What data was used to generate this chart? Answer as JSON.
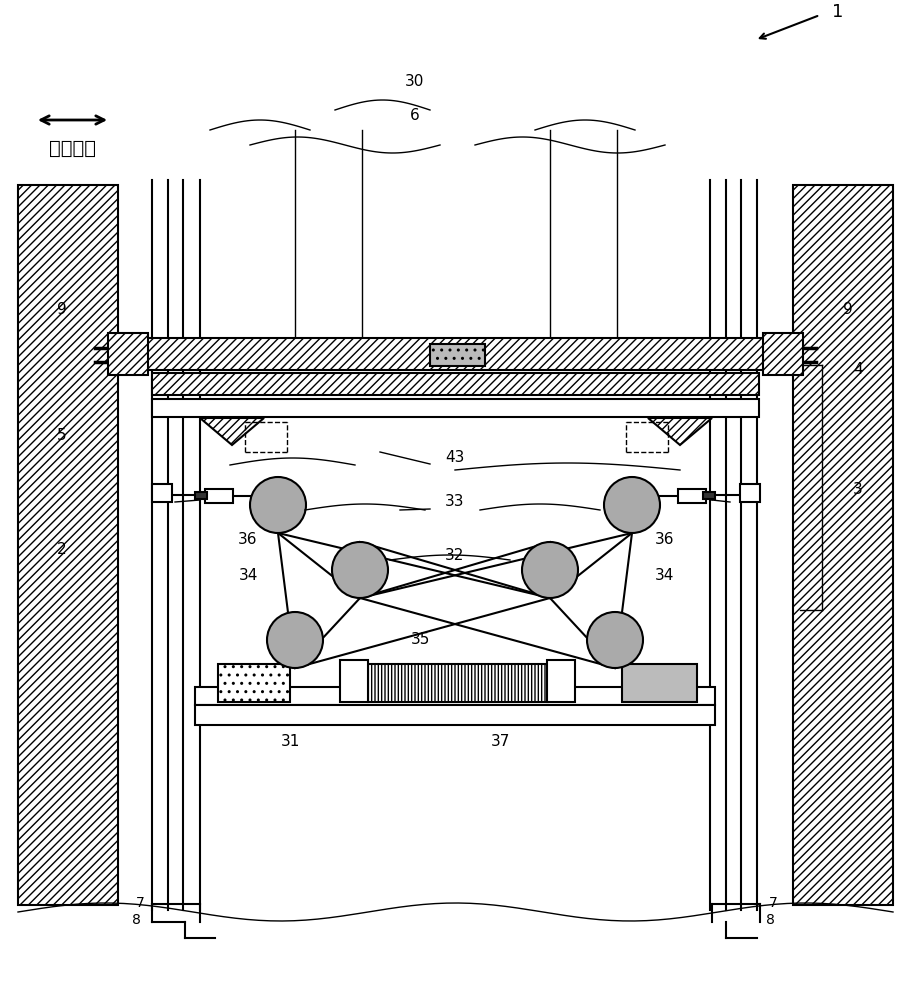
{
  "bg_color": "#ffffff",
  "gray_fill": "#aaaaaa",
  "light_gray": "#cccccc",
  "label_1": "1",
  "label_2": "2",
  "label_3": "3",
  "label_4": "4",
  "label_5": "5",
  "label_6": "6",
  "label_7": "7",
  "label_8": "8",
  "label_9": "9",
  "label_30": "30",
  "label_31": "31",
  "label_32": "32",
  "label_33": "33",
  "label_34": "34",
  "label_35": "35",
  "label_36": "36",
  "label_37": "37",
  "label_43": "43",
  "bottom_text": "左右方向",
  "fig_width": 9.11,
  "fig_height": 10.0
}
